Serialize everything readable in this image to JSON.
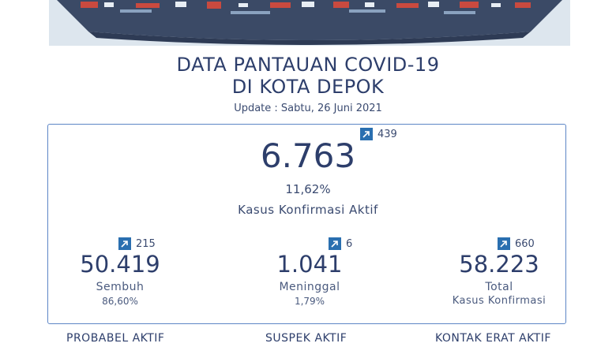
{
  "header": {
    "title_line1": "DATA PANTAUAN COVID-19",
    "title_line2": "DI KOTA DEPOK",
    "update": "Update : Sabtu, 26 Juni 2021"
  },
  "active": {
    "value": "6.763",
    "delta": "439",
    "percent": "11,62%",
    "label": "Kasus Konfirmasi Aktif"
  },
  "recovered": {
    "value": "50.419",
    "delta": "215",
    "label": "Sembuh",
    "percent": "86,60%"
  },
  "deaths": {
    "value": "1.041",
    "delta": "6",
    "label": "Meninggal",
    "percent": "1,79%"
  },
  "total": {
    "value": "58.223",
    "delta": "660",
    "label_line1": "Total",
    "label_line2": "Kasus Konfirmasi"
  },
  "sections": {
    "probable": "PROBABEL AKTIF",
    "suspect": "SUSPEK AKTIF",
    "close_contact": "KONTAK ERAT AKTIF"
  },
  "colors": {
    "primary": "#2d3e6b",
    "accent": "#2a6fb0",
    "border": "#5d86c6"
  },
  "icons": {
    "increase": "arrow-up-right-icon"
  }
}
